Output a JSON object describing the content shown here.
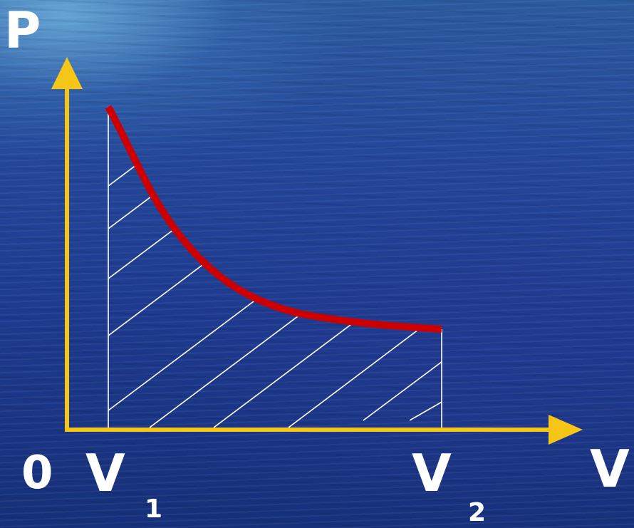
{
  "labels": {
    "p_axis": "P",
    "v_axis": "V",
    "origin": "0",
    "v1_letter": "V",
    "v1_sub": "1",
    "v2_letter": "V",
    "v2_sub": "2"
  },
  "colors": {
    "axis": "#f5c518",
    "curve": "#cc0000",
    "hatch": "#ffffff",
    "text": "#ffffff"
  }
}
